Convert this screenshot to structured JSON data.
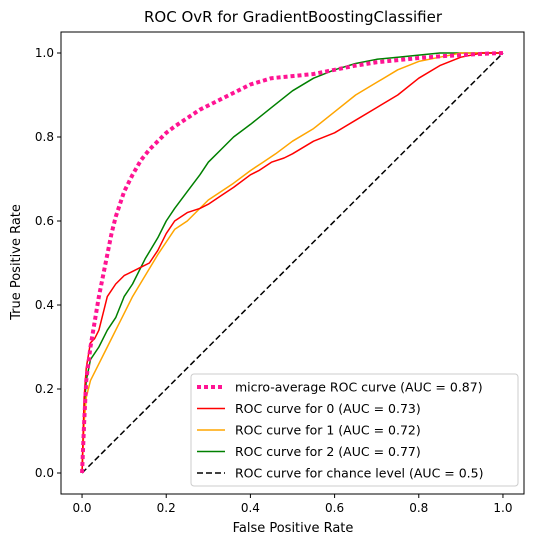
{
  "chart_data": {
    "type": "line",
    "title": "ROC OvR for GradientBoostingClassifier",
    "xlabel": "False Positive Rate",
    "ylabel": "True Positive Rate",
    "xlim": [
      -0.05,
      1.05
    ],
    "ylim": [
      -0.05,
      1.05
    ],
    "xticks": [
      0.0,
      0.2,
      0.4,
      0.6,
      0.8,
      1.0
    ],
    "yticks": [
      0.0,
      0.2,
      0.4,
      0.6,
      0.8,
      1.0
    ],
    "xtick_labels": [
      "0.0",
      "0.2",
      "0.4",
      "0.6",
      "0.8",
      "1.0"
    ],
    "ytick_labels": [
      "0.0",
      "0.2",
      "0.4",
      "0.6",
      "0.8",
      "1.0"
    ],
    "grid": false,
    "legend_position": "lower-right",
    "series": [
      {
        "name": "micro-average ROC curve (AUC = 0.87)",
        "color": "#ff1493",
        "style": "dotted",
        "x": [
          0.0,
          0.005,
          0.01,
          0.02,
          0.03,
          0.04,
          0.05,
          0.06,
          0.07,
          0.08,
          0.09,
          0.1,
          0.12,
          0.14,
          0.16,
          0.18,
          0.2,
          0.22,
          0.25,
          0.28,
          0.3,
          0.32,
          0.35,
          0.38,
          0.4,
          0.45,
          0.5,
          0.55,
          0.6,
          0.65,
          0.7,
          0.75,
          0.8,
          0.85,
          0.9,
          0.95,
          1.0
        ],
        "y": [
          0.0,
          0.12,
          0.22,
          0.3,
          0.36,
          0.42,
          0.47,
          0.52,
          0.57,
          0.61,
          0.64,
          0.67,
          0.71,
          0.745,
          0.77,
          0.79,
          0.81,
          0.825,
          0.845,
          0.865,
          0.875,
          0.885,
          0.9,
          0.915,
          0.925,
          0.94,
          0.945,
          0.95,
          0.96,
          0.97,
          0.978,
          0.983,
          0.988,
          0.992,
          0.995,
          0.998,
          1.0
        ]
      },
      {
        "name": "ROC curve for 0 (AUC = 0.73)",
        "color": "#ff0000",
        "style": "solid",
        "x": [
          0.0,
          0.005,
          0.01,
          0.02,
          0.03,
          0.04,
          0.05,
          0.06,
          0.08,
          0.1,
          0.12,
          0.14,
          0.16,
          0.18,
          0.2,
          0.22,
          0.25,
          0.28,
          0.3,
          0.33,
          0.36,
          0.4,
          0.42,
          0.45,
          0.48,
          0.5,
          0.55,
          0.6,
          0.65,
          0.7,
          0.75,
          0.8,
          0.85,
          0.9,
          0.95,
          1.0
        ],
        "y": [
          0.0,
          0.18,
          0.25,
          0.31,
          0.32,
          0.34,
          0.38,
          0.42,
          0.45,
          0.47,
          0.48,
          0.49,
          0.5,
          0.53,
          0.57,
          0.6,
          0.62,
          0.63,
          0.64,
          0.66,
          0.68,
          0.71,
          0.72,
          0.74,
          0.75,
          0.76,
          0.79,
          0.81,
          0.84,
          0.87,
          0.9,
          0.94,
          0.97,
          0.99,
          1.0,
          1.0
        ]
      },
      {
        "name": "ROC curve for 1 (AUC = 0.72)",
        "color": "#ffa500",
        "style": "solid",
        "x": [
          0.0,
          0.005,
          0.01,
          0.02,
          0.04,
          0.06,
          0.08,
          0.1,
          0.12,
          0.15,
          0.18,
          0.2,
          0.22,
          0.25,
          0.28,
          0.3,
          0.33,
          0.36,
          0.4,
          0.43,
          0.46,
          0.5,
          0.55,
          0.6,
          0.65,
          0.7,
          0.75,
          0.8,
          0.85,
          0.9,
          0.95,
          1.0
        ],
        "y": [
          0.0,
          0.12,
          0.18,
          0.22,
          0.26,
          0.3,
          0.34,
          0.38,
          0.42,
          0.47,
          0.52,
          0.55,
          0.58,
          0.6,
          0.63,
          0.65,
          0.67,
          0.69,
          0.72,
          0.74,
          0.76,
          0.79,
          0.82,
          0.86,
          0.9,
          0.93,
          0.96,
          0.98,
          0.99,
          1.0,
          1.0,
          1.0
        ]
      },
      {
        "name": "ROC curve for 2 (AUC = 0.77)",
        "color": "#008000",
        "style": "solid",
        "x": [
          0.0,
          0.005,
          0.01,
          0.02,
          0.04,
          0.06,
          0.08,
          0.1,
          0.12,
          0.15,
          0.18,
          0.2,
          0.22,
          0.25,
          0.28,
          0.3,
          0.33,
          0.36,
          0.4,
          0.45,
          0.5,
          0.55,
          0.6,
          0.65,
          0.7,
          0.75,
          0.8,
          0.85,
          0.9,
          0.95,
          1.0
        ],
        "y": [
          0.0,
          0.15,
          0.22,
          0.27,
          0.3,
          0.34,
          0.37,
          0.42,
          0.45,
          0.51,
          0.56,
          0.6,
          0.63,
          0.67,
          0.71,
          0.74,
          0.77,
          0.8,
          0.83,
          0.87,
          0.91,
          0.94,
          0.96,
          0.975,
          0.985,
          0.99,
          0.995,
          1.0,
          1.0,
          1.0,
          1.0
        ]
      },
      {
        "name": "ROC curve for chance level (AUC = 0.5)",
        "color": "#000000",
        "style": "dashed",
        "x": [
          0.0,
          1.0
        ],
        "y": [
          0.0,
          1.0
        ]
      }
    ]
  }
}
